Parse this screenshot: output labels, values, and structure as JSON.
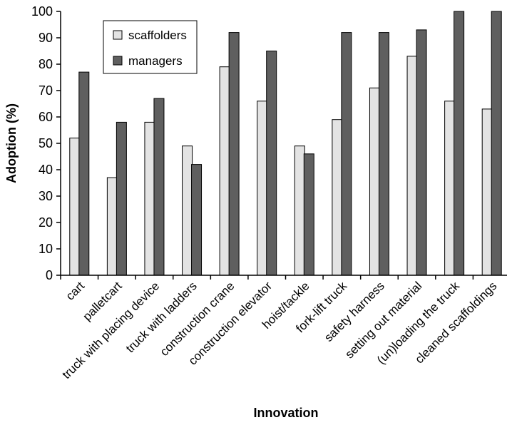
{
  "chart_data": {
    "type": "bar",
    "title": "",
    "xlabel": "Innovation",
    "ylabel": "Adoption (%)",
    "ylim": [
      0,
      100
    ],
    "yticks": [
      0,
      10,
      20,
      30,
      40,
      50,
      60,
      70,
      80,
      90,
      100
    ],
    "grid": false,
    "legend_position": "top-left",
    "categories": [
      "cart",
      "palletcart",
      "truck with placing device",
      "truck with ladders",
      "construction crane",
      "construction elevator",
      "hoist/tackle",
      "fork-lift truck",
      "safety harness",
      "setting out material",
      "(un)loading the truck",
      "cleaned scaffoldings"
    ],
    "series": [
      {
        "name": "scaffolders",
        "color": "#e3e3e3",
        "values": [
          52,
          37,
          58,
          49,
          79,
          66,
          49,
          59,
          71,
          83,
          66,
          63
        ]
      },
      {
        "name": "managers",
        "color": "#5f5f5f",
        "values": [
          77,
          58,
          67,
          42,
          92,
          85,
          46,
          92,
          92,
          93,
          100,
          100
        ]
      }
    ]
  }
}
